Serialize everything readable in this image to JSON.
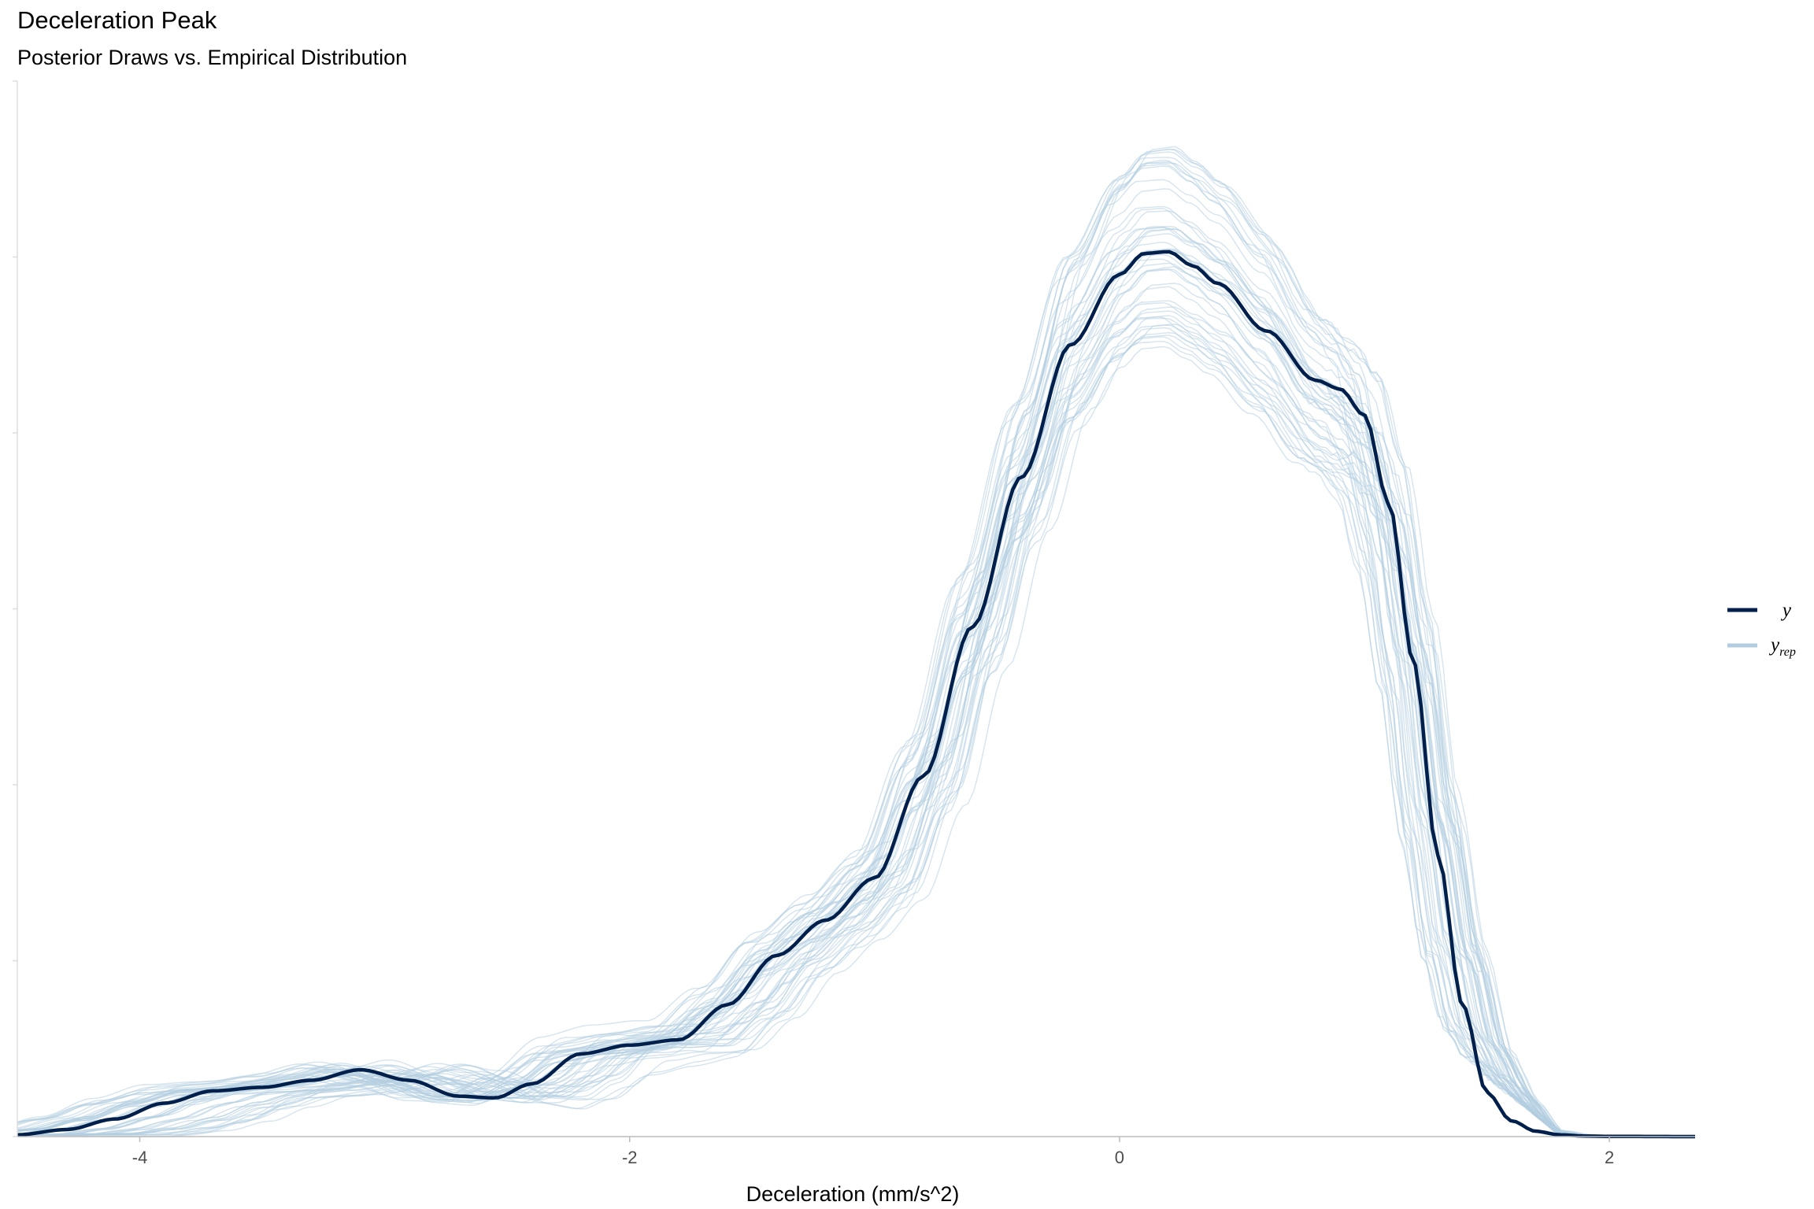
{
  "chart_data": {
    "type": "line",
    "title": "Deceleration Peak",
    "subtitle": "Posterior Draws vs. Empirical Distribution",
    "xlabel": "Deceleration (mm/s^2)",
    "ylabel": "",
    "xlim": [
      -4.5,
      2.35
    ],
    "ylim": [
      0,
      0.6
    ],
    "x_ticks": [
      -4,
      -2,
      0,
      2
    ],
    "x_tick_labels": [
      "-4",
      "-2",
      "0",
      "2"
    ],
    "y_ticks": [
      0,
      0.1,
      0.2,
      0.3,
      0.4,
      0.5,
      0.6
    ],
    "y_tick_labels_shown": false,
    "grid": false,
    "legend_position": "right",
    "series": [
      {
        "name": "y",
        "color": "#011f4b",
        "x": [
          -4.5,
          -4.3,
          -4.1,
          -3.9,
          -3.7,
          -3.5,
          -3.3,
          -3.1,
          -2.9,
          -2.7,
          -2.55,
          -2.4,
          -2.2,
          -2.0,
          -1.8,
          -1.6,
          -1.4,
          -1.2,
          -1.0,
          -0.8,
          -0.6,
          -0.4,
          -0.2,
          0.0,
          0.1,
          0.2,
          0.3,
          0.4,
          0.6,
          0.8,
          0.9,
          1.0,
          1.1,
          1.2,
          1.3,
          1.4,
          1.5,
          1.6,
          1.7,
          1.8,
          1.9,
          2.0,
          2.35
        ],
        "y": [
          0.001,
          0.004,
          0.01,
          0.019,
          0.026,
          0.028,
          0.032,
          0.038,
          0.032,
          0.023,
          0.022,
          0.03,
          0.047,
          0.052,
          0.055,
          0.075,
          0.103,
          0.123,
          0.147,
          0.205,
          0.29,
          0.375,
          0.45,
          0.49,
          0.502,
          0.503,
          0.495,
          0.485,
          0.458,
          0.43,
          0.425,
          0.41,
          0.36,
          0.27,
          0.16,
          0.075,
          0.025,
          0.009,
          0.003,
          0.001,
          0.0003,
          0.0001,
          0.0
        ]
      },
      {
        "name": "y_rep",
        "color": "#b3cde0",
        "draws": 50
      }
    ]
  },
  "legend": {
    "y_label": "y",
    "yrep_label_main": "y",
    "yrep_label_sub": "rep"
  }
}
